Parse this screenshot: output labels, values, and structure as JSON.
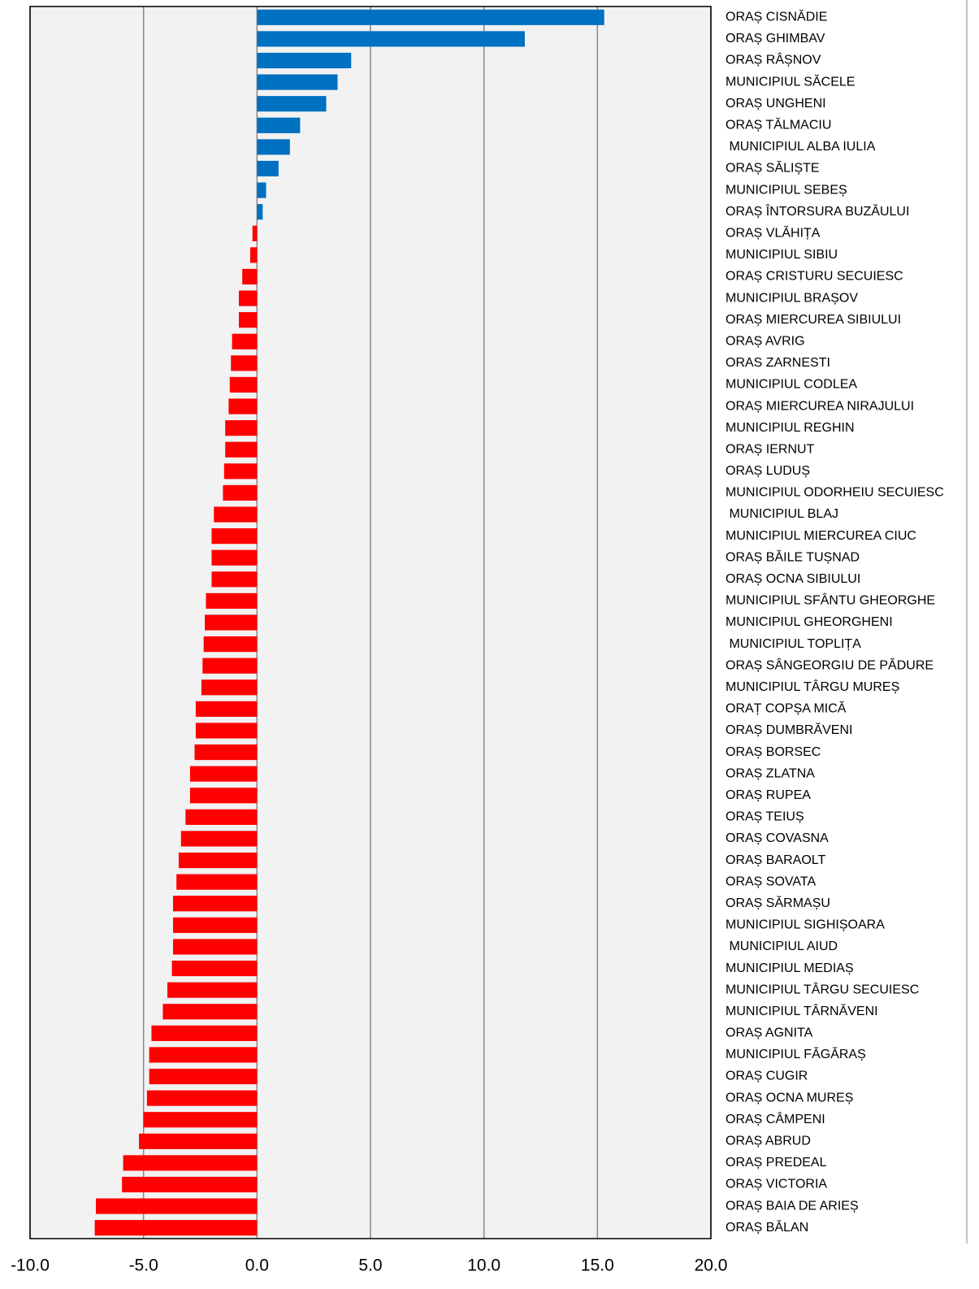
{
  "chart_data": {
    "type": "hbar",
    "categories": [
      "ORAȘ CISNĂDIE",
      "ORAȘ GHIMBAV",
      "ORAȘ RÂȘNOV",
      "MUNICIPIUL SĂCELE",
      "ORAȘ UNGHENI",
      "ORAȘ TĂLMACIU",
      " MUNICIPIUL ALBA IULIA",
      "ORAȘ SĂLIȘTE",
      "MUNICIPIUL SEBEȘ",
      "ORAȘ ÎNTORSURA BUZĂULUI",
      "ORAȘ VLĂHIȚA",
      "MUNICIPIUL SIBIU",
      "ORAȘ CRISTURU SECUIESC",
      "MUNICIPIUL BRAȘOV",
      "ORAȘ MIERCUREA SIBIULUI",
      "ORAȘ AVRIG",
      "ORAS ZARNESTI",
      "MUNICIPIUL CODLEA",
      "ORAȘ MIERCUREA NIRAJULUI",
      "MUNICIPIUL REGHIN",
      "ORAȘ IERNUT",
      "ORAȘ LUDUȘ",
      "MUNICIPIUL ODORHEIU SECUIESC",
      " MUNICIPIUL BLAJ",
      "MUNICIPIUL MIERCUREA CIUC",
      "ORAȘ BĂILE TUȘNAD",
      "ORAȘ OCNA SIBIULUI",
      "MUNICIPIUL SFÂNTU GHEORGHE",
      "MUNICIPIUL GHEORGHENI",
      " MUNICIPIUL TOPLIȚA",
      "ORAȘ SÂNGEORGIU DE PĂDURE",
      "MUNICIPIUL TÂRGU MUREȘ",
      "ORAȚ COPȘA MICĂ",
      "ORAȘ DUMBRĂVENI",
      "ORAȘ BORSEC",
      "ORAȘ ZLATNA",
      "ORAȘ RUPEA",
      "ORAȘ TEIUȘ",
      "ORAȘ COVASNA",
      "ORAȘ BARAOLT",
      "ORAȘ SOVATA",
      "ORAȘ SĂRMAȘU",
      "MUNICIPIUL SIGHIȘOARA",
      " MUNICIPIUL AIUD",
      "MUNICIPIUL MEDIAȘ",
      "MUNICIPIUL TÂRGU SECUIESC",
      "MUNICIPIUL TÂRNĂVENI",
      "ORAȘ AGNITA",
      "MUNICIPIUL FĂGĂRAȘ",
      "ORAȘ CUGIR",
      "ORAȘ OCNA MUREȘ",
      "ORAȘ CÂMPENI",
      "ORAȘ ABRUD",
      "ORAȘ PREDEAL",
      "ORAȘ VICTORIA",
      "ORAȘ BAIA DE ARIEȘ",
      "ORAȘ BĂLAN"
    ],
    "values": [
      15.3,
      11.8,
      4.15,
      3.55,
      3.05,
      1.9,
      1.45,
      0.95,
      0.4,
      0.25,
      -0.2,
      -0.3,
      -0.65,
      -0.8,
      -0.8,
      -1.1,
      -1.15,
      -1.2,
      -1.25,
      -1.4,
      -1.4,
      -1.45,
      -1.5,
      -1.9,
      -2.0,
      -2.0,
      -2.0,
      -2.25,
      -2.3,
      -2.35,
      -2.4,
      -2.45,
      -2.7,
      -2.7,
      -2.75,
      -2.95,
      -2.95,
      -3.15,
      -3.35,
      -3.45,
      -3.55,
      -3.7,
      -3.7,
      -3.7,
      -3.75,
      -3.95,
      -4.15,
      -4.65,
      -4.75,
      -4.75,
      -4.85,
      -5.0,
      -5.2,
      -5.9,
      -5.95,
      -7.1,
      -7.15
    ],
    "positive_color": "#0070c0",
    "negative_color": "#ff0000",
    "xlim": [
      -10,
      20
    ],
    "xticks": [
      {
        "value": -10,
        "label": "-10.0"
      },
      {
        "value": -5,
        "label": "-5.0"
      },
      {
        "value": 0,
        "label": "0.0"
      },
      {
        "value": 5,
        "label": "5.0"
      },
      {
        "value": 10,
        "label": "10.0"
      },
      {
        "value": 15,
        "label": "15.0"
      },
      {
        "value": 20,
        "label": "20.0"
      }
    ],
    "grid": true
  }
}
